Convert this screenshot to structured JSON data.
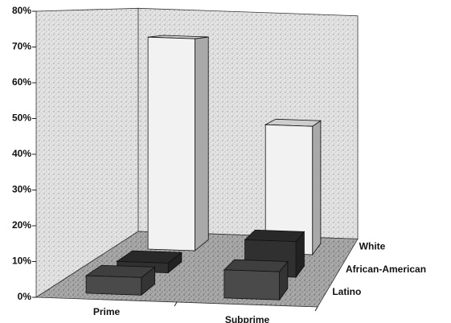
{
  "chart_data": {
    "type": "bar3d",
    "categories": [
      "Prime",
      "Subprime"
    ],
    "series": [
      {
        "name": "Latino",
        "color": "#4a4a4a",
        "values": [
          5,
          8
        ]
      },
      {
        "name": "African-American",
        "color": "#303030",
        "values": [
          3,
          11
        ]
      },
      {
        "name": "White",
        "color": "#f2f2f2",
        "values": [
          71,
          43
        ]
      }
    ],
    "ylim": [
      0,
      80
    ],
    "yticks": [
      {
        "value": 0,
        "label": "0%"
      },
      {
        "value": 10,
        "label": "10%"
      },
      {
        "value": 20,
        "label": "20%"
      },
      {
        "value": 30,
        "label": "30%"
      },
      {
        "value": 40,
        "label": "40%"
      },
      {
        "value": 50,
        "label": "50%"
      },
      {
        "value": 60,
        "label": "60%"
      },
      {
        "value": 70,
        "label": "70%"
      },
      {
        "value": 80,
        "label": "80%"
      }
    ]
  }
}
